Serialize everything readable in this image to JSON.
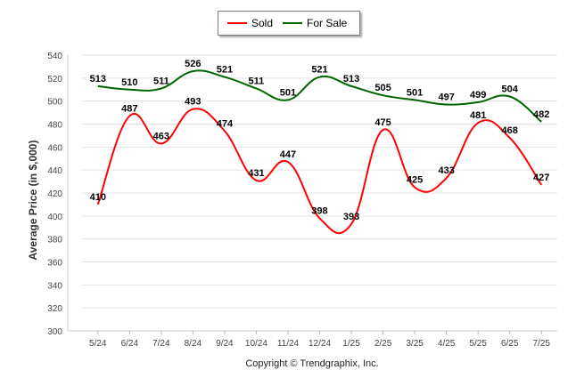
{
  "chart_data": {
    "type": "line",
    "categories": [
      "5/24",
      "6/24",
      "7/24",
      "8/24",
      "9/24",
      "10/24",
      "11/24",
      "12/24",
      "1/25",
      "2/25",
      "3/25",
      "4/25",
      "5/25",
      "6/25",
      "7/25"
    ],
    "series": [
      {
        "name": "Sold",
        "color": "#ff0000",
        "values": [
          410,
          487,
          463,
          493,
          474,
          431,
          447,
          398,
          393,
          475,
          425,
          433,
          481,
          468,
          427
        ]
      },
      {
        "name": "For Sale",
        "color": "#006400",
        "values": [
          513,
          510,
          511,
          526,
          521,
          511,
          501,
          521,
          513,
          505,
          501,
          497,
          499,
          504,
          482
        ]
      }
    ],
    "ylabel": "Average Price (in $,000)",
    "xlabel": "",
    "ylim": [
      300,
      540
    ],
    "yticks": [
      300,
      320,
      340,
      360,
      380,
      400,
      420,
      440,
      460,
      480,
      500,
      520,
      540
    ],
    "grid": true,
    "legend_position": "top-center",
    "data_labels": true
  },
  "footer": {
    "copyright": "Copyright © Trendgraphix, Inc."
  }
}
